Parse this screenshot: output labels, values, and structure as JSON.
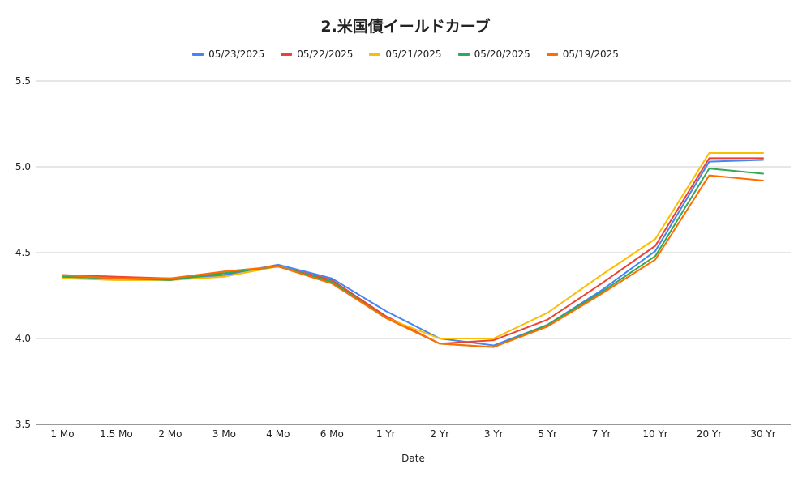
{
  "chart_data": {
    "type": "line",
    "title": "2.米国債イールドカーブ",
    "xlabel": "Date",
    "ylabel": "",
    "ylim": [
      3.5,
      5.5
    ],
    "yticks": [
      "3.5",
      "4.0",
      "4.5",
      "5.0",
      "5.5"
    ],
    "grid": true,
    "legend_position": "top",
    "categories": [
      "1 Mo",
      "1.5 Mo",
      "2 Mo",
      "3 Mo",
      "4 Mo",
      "6 Mo",
      "1 Yr",
      "2 Yr",
      "3 Yr",
      "5 Yr",
      "7 Yr",
      "10 Yr",
      "20 Yr",
      "30 Yr"
    ],
    "series": [
      {
        "name": "05/23/2025",
        "color": "#4285f4",
        "values": [
          4.36,
          4.35,
          4.34,
          4.37,
          4.43,
          4.35,
          4.16,
          4.0,
          3.96,
          4.08,
          4.28,
          4.51,
          5.03,
          5.04
        ]
      },
      {
        "name": "05/22/2025",
        "color": "#ea4335",
        "values": [
          4.37,
          4.36,
          4.35,
          4.38,
          4.42,
          4.34,
          4.13,
          3.97,
          3.99,
          4.11,
          4.32,
          4.54,
          5.05,
          5.05
        ]
      },
      {
        "name": "05/21/2025",
        "color": "#fbbc04",
        "values": [
          4.35,
          4.34,
          4.34,
          4.36,
          4.42,
          4.33,
          4.12,
          4.0,
          4.0,
          4.15,
          4.37,
          4.58,
          5.08,
          5.08
        ]
      },
      {
        "name": "05/20/2025",
        "color": "#34a853",
        "values": [
          4.36,
          4.35,
          4.34,
          4.38,
          4.42,
          4.33,
          4.12,
          3.97,
          3.95,
          4.08,
          4.27,
          4.48,
          4.99,
          4.96
        ]
      },
      {
        "name": "05/19/2025",
        "color": "#ff6d01",
        "values": [
          4.37,
          4.35,
          4.35,
          4.39,
          4.42,
          4.32,
          4.12,
          3.97,
          3.95,
          4.07,
          4.26,
          4.46,
          4.95,
          4.92
        ]
      }
    ]
  }
}
